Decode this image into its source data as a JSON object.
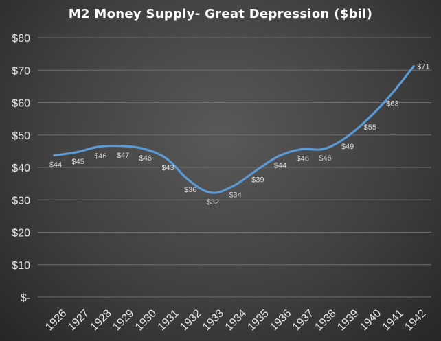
{
  "chart_data": {
    "type": "line",
    "title": "M2 Money Supply-  Great Depression  ($bil)",
    "xlabel": "",
    "ylabel": "",
    "categories": [
      "1926",
      "1927",
      "1928",
      "1929",
      "1930",
      "1931",
      "1932",
      "1933",
      "1934",
      "1935",
      "1936",
      "1937",
      "1938",
      "1939",
      "1940",
      "1941",
      "1942"
    ],
    "series": [
      {
        "values": [
          43.7,
          44.7,
          46.4,
          46.6,
          45.7,
          42.7,
          36.0,
          32.2,
          34.4,
          39.1,
          43.5,
          45.6,
          45.7,
          49.3,
          55.2,
          62.5,
          71.2
        ],
        "labels": [
          "$44",
          "$45",
          "$46",
          "$47",
          "$46",
          "$43",
          "$36",
          "$32",
          "$34",
          "$39",
          "$44",
          "$46",
          "$46",
          "$49",
          "$55",
          "$63",
          "$71"
        ]
      }
    ],
    "ylim": [
      0,
      80
    ],
    "y_ticks": [
      0,
      10,
      20,
      30,
      40,
      50,
      60,
      70,
      80
    ],
    "y_tick_labels": [
      "$-",
      "$10",
      "$20",
      "$30",
      "$40",
      "$50",
      "$60",
      "$70",
      "$80"
    ],
    "grid": true,
    "legend": "none",
    "colors": {
      "line": "#5b9bd5",
      "grid": "#6e6e6e",
      "background": "#404040"
    }
  }
}
